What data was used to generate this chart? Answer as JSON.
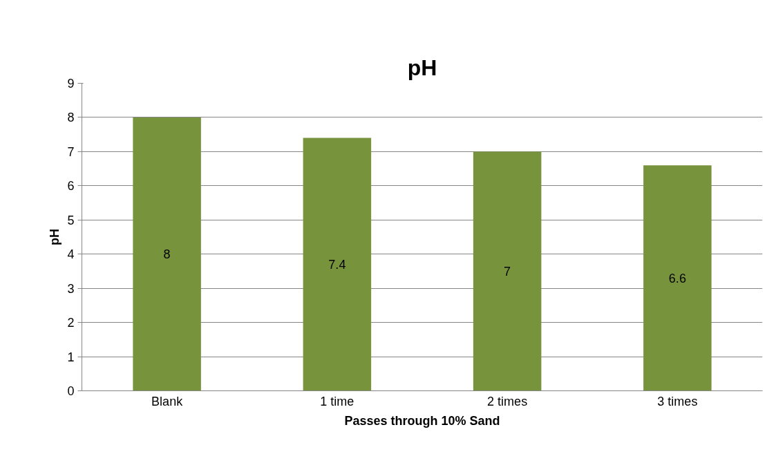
{
  "chart_data": {
    "type": "bar",
    "title": "pH",
    "xlabel": "Passes through 10% Sand",
    "ylabel": "pH",
    "categories": [
      "Blank",
      "1 time",
      "2 times",
      "3 times"
    ],
    "values": [
      8,
      7.4,
      7,
      6.6
    ],
    "color": "#77933c",
    "ylim": [
      0,
      9
    ],
    "yticks": [
      0,
      1,
      2,
      3,
      4,
      5,
      6,
      7,
      8,
      9
    ],
    "grid": "y",
    "data_labels": true
  }
}
